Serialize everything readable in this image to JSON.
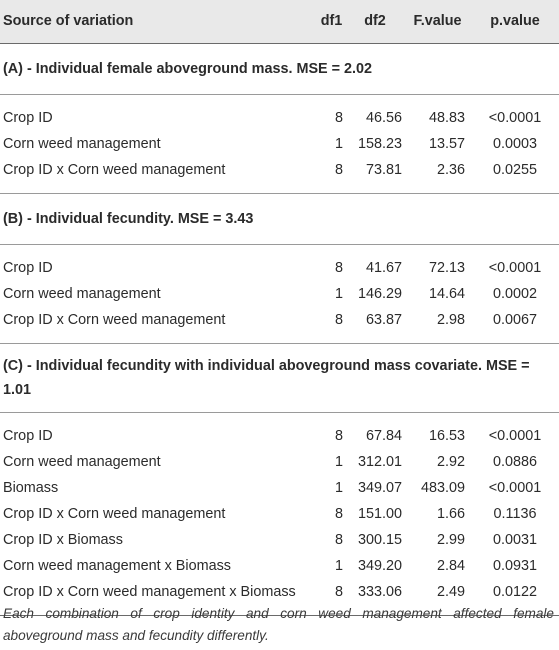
{
  "header": {
    "source": "Source of variation",
    "df1": "df1",
    "df2": "df2",
    "fvalue": "F.value",
    "pvalue": "p.value"
  },
  "sections": [
    {
      "title": "(A) - Individual female aboveground mass. MSE = 2.02",
      "rows": [
        {
          "source": "Crop ID",
          "df1": "8",
          "df2": "46.56",
          "f": "48.83",
          "p": "<0.0001"
        },
        {
          "source": "Corn weed management",
          "df1": "1",
          "df2": "158.23",
          "f": "13.57",
          "p": "0.0003"
        },
        {
          "source": "Crop ID x Corn weed management",
          "df1": "8",
          "df2": "73.81",
          "f": "2.36",
          "p": "0.0255"
        }
      ]
    },
    {
      "title": "(B) - Individual fecundity. MSE = 3.43",
      "rows": [
        {
          "source": "Crop ID",
          "df1": "8",
          "df2": "41.67",
          "f": "72.13",
          "p": "<0.0001"
        },
        {
          "source": "Corn weed management",
          "df1": "1",
          "df2": "146.29",
          "f": "14.64",
          "p": "0.0002"
        },
        {
          "source": "Crop ID x Corn weed management",
          "df1": "8",
          "df2": "63.87",
          "f": "2.98",
          "p": "0.0067"
        }
      ]
    },
    {
      "title": "(C) - Individual fecundity with individual aboveground mass covariate. MSE = 1.01",
      "rows": [
        {
          "source": "Crop ID",
          "df1": "8",
          "df2": "67.84",
          "f": "16.53",
          "p": "<0.0001"
        },
        {
          "source": "Corn weed management",
          "df1": "1",
          "df2": "312.01",
          "f": "2.92",
          "p": "0.0886"
        },
        {
          "source": "Biomass",
          "df1": "1",
          "df2": "349.07",
          "f": "483.09",
          "p": "<0.0001"
        },
        {
          "source": "Crop ID x Corn weed management",
          "df1": "8",
          "df2": "151.00",
          "f": "1.66",
          "p": "0.1136"
        },
        {
          "source": "Crop ID x Biomass",
          "df1": "8",
          "df2": "300.15",
          "f": "2.99",
          "p": "0.0031"
        },
        {
          "source": "Corn weed management x Biomass",
          "df1": "1",
          "df2": "349.20",
          "f": "2.84",
          "p": "0.0931"
        },
        {
          "source": "Crop ID x Corn weed management x Biomass",
          "df1": "8",
          "df2": "333.06",
          "f": "2.49",
          "p": "0.0122"
        }
      ]
    }
  ],
  "footnote": "Each combination of crop identity and corn weed management affected female aboveground mass and fecundity differently."
}
